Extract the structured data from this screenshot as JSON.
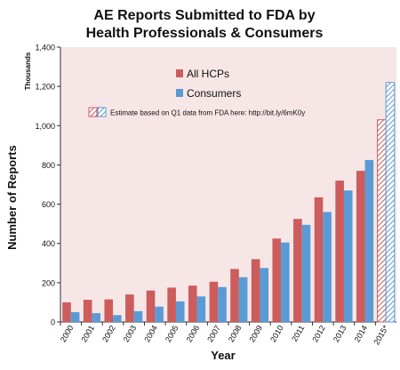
{
  "chart_data": {
    "type": "bar",
    "title": "AE Reports Submitted to FDA by Health Professionals & Consumers",
    "title_lines": [
      "AE Reports Submitted to FDA by",
      "Health Professionals & Consumers"
    ],
    "xlabel": "Year",
    "ylabel": "Number of Reports",
    "y_unit": "Thousands",
    "ylim": [
      0,
      1400
    ],
    "yticks": [
      "0",
      "200",
      "400",
      "600",
      "800",
      "1,000",
      "1,200",
      "1,400"
    ],
    "grid": false,
    "legend_position": "top-left",
    "categories": [
      "2000",
      "2001",
      "2002",
      "2003",
      "2004",
      "2005",
      "2006",
      "2007",
      "2008",
      "2009",
      "2010",
      "2011",
      "2012",
      "2013",
      "2014",
      "2015*"
    ],
    "series": [
      {
        "name": "All HCPs",
        "color": "#cd5c5c",
        "values": [
          100,
          113,
          115,
          140,
          160,
          175,
          185,
          205,
          270,
          320,
          425,
          525,
          635,
          720,
          770,
          1030
        ]
      },
      {
        "name": "Consumers",
        "color": "#5b9bd5",
        "values": [
          50,
          45,
          35,
          55,
          78,
          105,
          130,
          178,
          228,
          275,
          405,
          495,
          560,
          670,
          825,
          1220
        ]
      }
    ],
    "estimated_categories": [
      "2015*"
    ],
    "estimate_note": "Estimate based on Q1 data from FDA here: http://bit.ly/6mK0y",
    "plot_background": "#f7e6e6"
  }
}
